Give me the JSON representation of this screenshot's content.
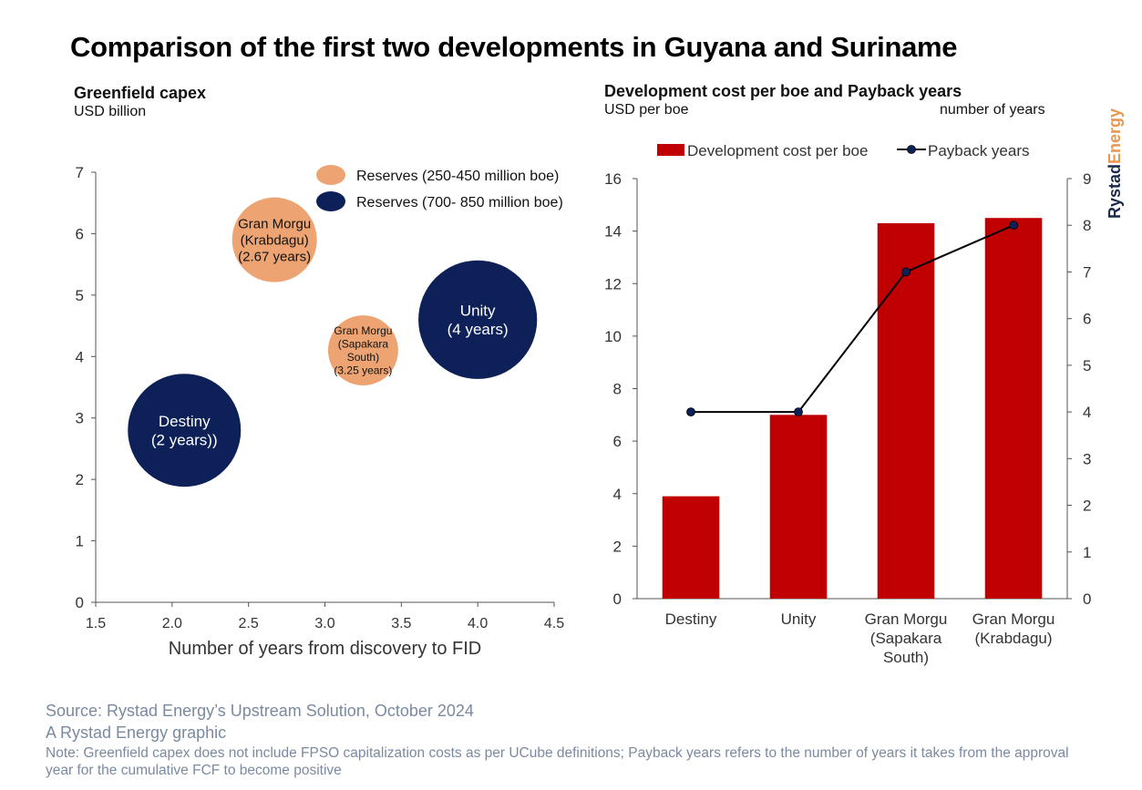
{
  "title": "Comparison of the first two developments in Guyana and Suriname",
  "brand": {
    "part1": "Rystad",
    "part2": "Energy"
  },
  "chart_data": [
    {
      "type": "bubble",
      "title": "Greenfield capex",
      "ylabel": "USD billion",
      "xlabel": "Number of years from discovery to FID",
      "xlim": [
        1.5,
        4.5
      ],
      "ylim": [
        0,
        7
      ],
      "xticks": [
        "1.5",
        "2.0",
        "2.5",
        "3.0",
        "3.5",
        "4.0",
        "4.5"
      ],
      "yticks": [
        "0",
        "1",
        "2",
        "3",
        "4",
        "5",
        "6",
        "7"
      ],
      "grid": false,
      "legend_position": "top-right",
      "legend": [
        {
          "label": "Reserves (250-450 million boe)",
          "color": "#eda472"
        },
        {
          "label": "Reserves (700- 850 million boe)",
          "color": "#0d2057"
        }
      ],
      "points": [
        {
          "name": "Destiny",
          "x": 2.08,
          "y": 2.8,
          "size": 1.0,
          "group": 1,
          "label": [
            "Destiny",
            "(2 years))"
          ],
          "text_color": "#ffffff",
          "font": 17
        },
        {
          "name": "Unity",
          "x": 4.0,
          "y": 4.6,
          "size": 1.05,
          "group": 1,
          "label": [
            "Unity",
            "(4 years)"
          ],
          "text_color": "#ffffff",
          "font": 17
        },
        {
          "name": "Gran Morgu (Krabdagu)",
          "x": 2.67,
          "y": 5.9,
          "size": 0.75,
          "group": 0,
          "label": [
            "Gran Morgu",
            "(Krabdagu)",
            "(2.67 years)"
          ],
          "text_color": "#111111",
          "font": 15
        },
        {
          "name": "Gran Morgu (Sapakara South)",
          "x": 3.25,
          "y": 4.1,
          "size": 0.62,
          "group": 0,
          "label": [
            "Gran Morgu",
            "(Sapakara",
            "South)",
            "(3.25 years)"
          ],
          "text_color": "#111111",
          "font": 12
        }
      ]
    },
    {
      "type": "bar+line",
      "title": "Development cost per boe and Payback years",
      "ylabel": "USD per boe",
      "y2label": "number of years",
      "categories": [
        [
          "Destiny"
        ],
        [
          "Unity"
        ],
        [
          "Gran Morgu",
          "(Sapakara",
          "South)"
        ],
        [
          "Gran Morgu",
          "(Krabdagu)"
        ]
      ],
      "ylim": [
        0,
        16
      ],
      "y2lim": [
        0,
        9
      ],
      "yticks": [
        "0",
        "2",
        "4",
        "6",
        "8",
        "10",
        "12",
        "14",
        "16"
      ],
      "y2ticks": [
        "0",
        "1",
        "2",
        "3",
        "4",
        "5",
        "6",
        "7",
        "8",
        "9"
      ],
      "grid": false,
      "legend_position": "top",
      "series": [
        {
          "name": "Development cost per boe",
          "type": "bar",
          "color": "#c00000",
          "values": [
            3.9,
            7.0,
            14.3,
            14.5
          ]
        },
        {
          "name": "Payback years",
          "type": "line",
          "axis": "right",
          "color": "#000000",
          "marker_color": "#0d2057",
          "values": [
            4,
            4,
            7,
            8
          ]
        }
      ]
    }
  ],
  "footer": {
    "source": "Source: Rystad Energy’s Upstream Solution, October 2024",
    "credit": "A Rystad Energy graphic",
    "note": "Note: Greenfield capex does not include FPSO capitalization costs as per UCube definitions; Payback years refers to the number of years it takes from the approval year for the cumulative FCF to become positive"
  }
}
